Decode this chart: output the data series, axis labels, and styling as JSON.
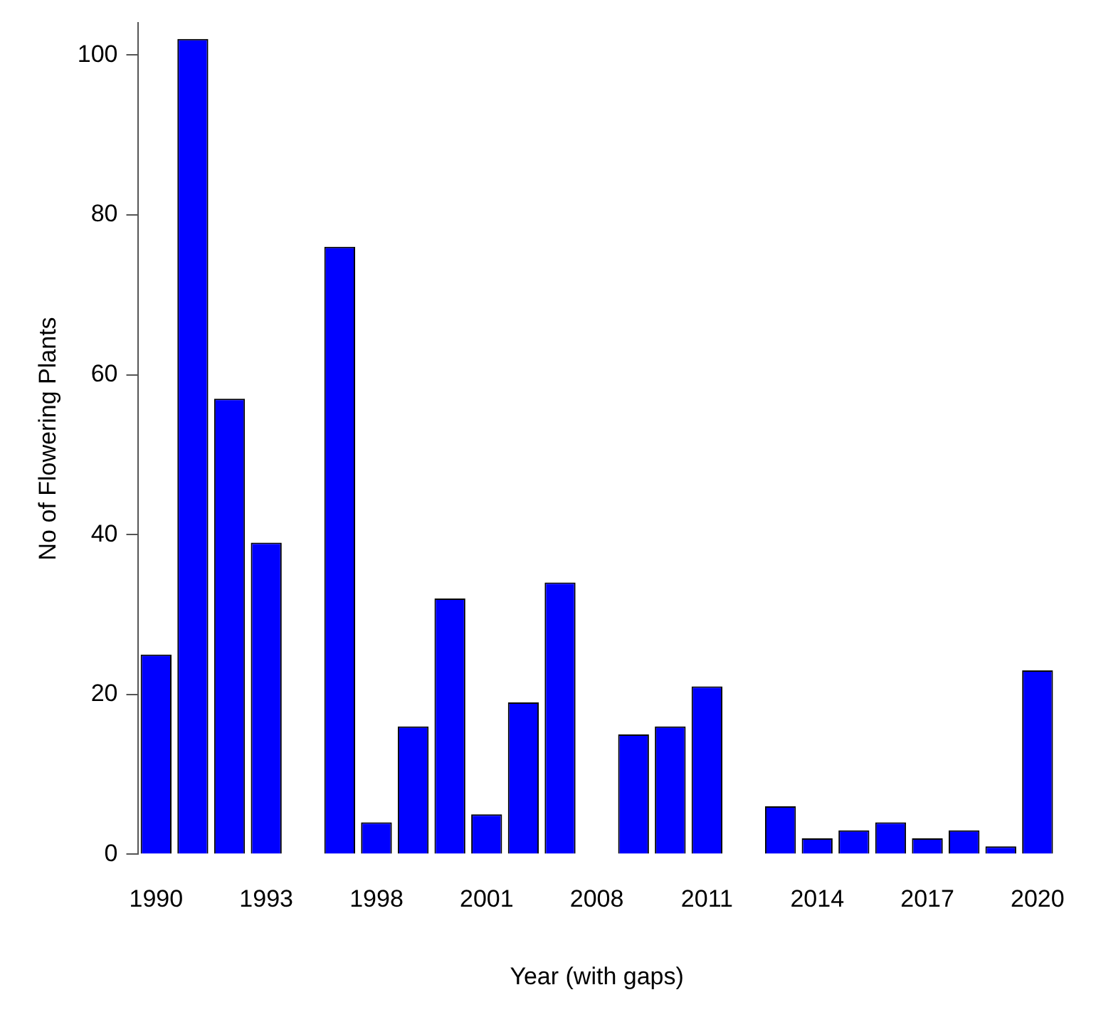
{
  "chart_data": {
    "type": "bar",
    "xlabel": "Year (with gaps)",
    "ylabel": "No of Flowering Plants",
    "categories": [
      "1990",
      null,
      null,
      "1993",
      null,
      null,
      "1998",
      null,
      null,
      "2001",
      null,
      null,
      "2008",
      null,
      null,
      "2011",
      null,
      null,
      "2014",
      null,
      null,
      "2017",
      null,
      null,
      "2020"
    ],
    "values": [
      25,
      102,
      57,
      39,
      0,
      76,
      4,
      16,
      32,
      5,
      19,
      34,
      0,
      15,
      16,
      21,
      0,
      6,
      2,
      3,
      4,
      2,
      3,
      1,
      23
    ],
    "color": "#0000ff",
    "ylim": [
      0,
      104
    ],
    "yticks": [
      0,
      20,
      40,
      60,
      80,
      100
    ],
    "grid": false,
    "legend": false
  }
}
